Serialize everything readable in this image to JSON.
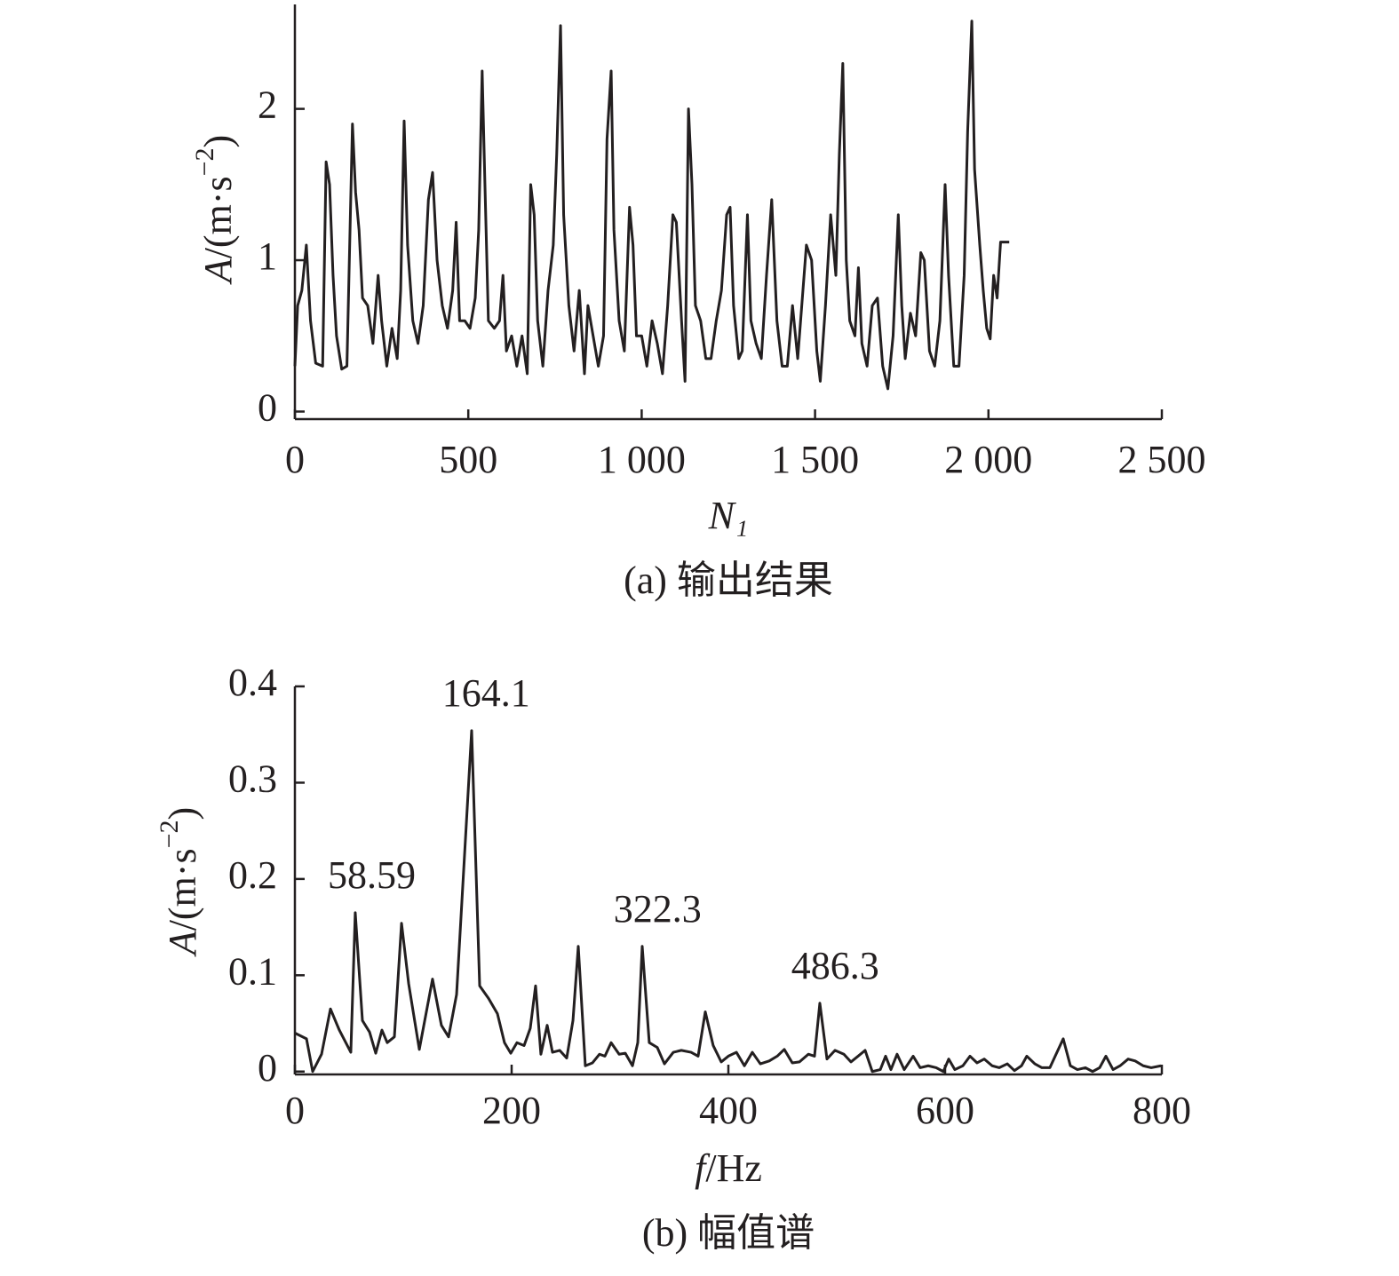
{
  "chart_data": [
    {
      "type": "line",
      "caption": "(a) 输出结果",
      "xlabel": [
        {
          "text": "N₁",
          "italic": true
        }
      ],
      "ylabel": [
        {
          "text": "A",
          "italic": true
        },
        {
          "text": "/(m·s"
        },
        {
          "text": "−2",
          "sup": true
        },
        {
          "text": ")"
        }
      ],
      "xlim": [
        0,
        2500
      ],
      "ylim": [
        -0.05,
        2.69
      ],
      "xticks": [
        0,
        500,
        {
          "value": 1000,
          "label": "1 000"
        },
        {
          "value": 1500,
          "label": "1 500"
        },
        {
          "value": 2000,
          "label": "2 000"
        },
        {
          "value": 2500,
          "label": "2 500"
        }
      ],
      "yticks": [
        0,
        1,
        2
      ],
      "x": [
        0,
        8,
        20,
        33,
        45,
        60,
        80,
        90,
        100,
        110,
        120,
        135,
        150,
        160,
        166,
        175,
        185,
        195,
        210,
        225,
        240,
        250,
        265,
        280,
        295,
        305,
        315,
        325,
        340,
        355,
        370,
        385,
        397,
        410,
        425,
        440,
        455,
        465,
        475,
        490,
        505,
        520,
        530,
        540,
        548,
        558,
        575,
        590,
        600,
        610,
        625,
        640,
        655,
        670,
        680,
        690,
        700,
        715,
        730,
        745,
        755,
        766,
        775,
        790,
        805,
        820,
        835,
        845,
        860,
        875,
        890,
        900,
        912,
        920,
        935,
        950,
        965,
        975,
        985,
        1000,
        1015,
        1030,
        1045,
        1060,
        1075,
        1090,
        1100,
        1115,
        1125,
        1135,
        1145,
        1155,
        1170,
        1185,
        1200,
        1215,
        1230,
        1245,
        1255,
        1265,
        1280,
        1290,
        1305,
        1315,
        1330,
        1345,
        1360,
        1375,
        1390,
        1405,
        1420,
        1435,
        1450,
        1465,
        1475,
        1490,
        1505,
        1515,
        1530,
        1545,
        1560,
        1570,
        1580,
        1590,
        1600,
        1615,
        1625,
        1635,
        1650,
        1665,
        1680,
        1695,
        1710,
        1725,
        1740,
        1750,
        1760,
        1775,
        1790,
        1805,
        1815,
        1830,
        1845,
        1860,
        1875,
        1885,
        1900,
        1915,
        1930,
        1940,
        1952,
        1960,
        1975,
        1985,
        1995,
        2005,
        2015,
        2025,
        2035,
        2060
      ],
      "series": [
        {
          "color": "#231f20",
          "values": [
            0.3,
            0.7,
            0.8,
            1.1,
            0.6,
            0.32,
            0.3,
            1.65,
            1.5,
            0.9,
            0.5,
            0.28,
            0.3,
            1.3,
            1.9,
            1.45,
            1.2,
            0.75,
            0.7,
            0.45,
            0.9,
            0.6,
            0.3,
            0.55,
            0.35,
            0.8,
            1.92,
            1.1,
            0.6,
            0.45,
            0.7,
            1.4,
            1.58,
            1.0,
            0.7,
            0.55,
            0.8,
            1.25,
            0.6,
            0.6,
            0.55,
            0.75,
            1.2,
            2.25,
            1.5,
            0.6,
            0.55,
            0.6,
            0.9,
            0.4,
            0.5,
            0.3,
            0.5,
            0.25,
            1.5,
            1.3,
            0.6,
            0.3,
            0.8,
            1.1,
            1.7,
            2.55,
            1.3,
            0.7,
            0.4,
            0.8,
            0.25,
            0.7,
            0.5,
            0.3,
            0.5,
            1.8,
            2.25,
            1.2,
            0.6,
            0.4,
            1.35,
            1.1,
            0.5,
            0.5,
            0.3,
            0.6,
            0.45,
            0.25,
            0.7,
            1.3,
            1.25,
            0.6,
            0.2,
            2.0,
            1.5,
            0.7,
            0.6,
            0.35,
            0.35,
            0.6,
            0.8,
            1.3,
            1.35,
            0.7,
            0.35,
            0.4,
            1.3,
            0.6,
            0.45,
            0.35,
            0.9,
            1.4,
            0.6,
            0.3,
            0.3,
            0.7,
            0.35,
            0.8,
            1.1,
            1.0,
            0.4,
            0.2,
            0.7,
            1.3,
            0.9,
            1.7,
            2.3,
            1.0,
            0.6,
            0.5,
            0.95,
            0.45,
            0.3,
            0.7,
            0.75,
            0.3,
            0.15,
            0.5,
            1.3,
            0.7,
            0.35,
            0.65,
            0.5,
            1.05,
            1.0,
            0.4,
            0.3,
            0.6,
            1.5,
            0.9,
            0.3,
            0.3,
            0.9,
            1.85,
            2.58,
            1.6,
            1.1,
            0.8,
            0.55,
            0.48,
            0.9,
            0.75,
            1.12,
            1.12
          ]
        }
      ]
    },
    {
      "type": "line",
      "caption": "(b) 幅值谱",
      "xlabel": [
        {
          "text": "f",
          "italic": true
        },
        {
          "text": "/Hz"
        }
      ],
      "ylabel": [
        {
          "text": "A",
          "italic": true
        },
        {
          "text": "/(m·s"
        },
        {
          "text": "−2",
          "sup": true
        },
        {
          "text": ")"
        }
      ],
      "xlim": [
        0,
        800
      ],
      "ylim": [
        -0.003,
        0.4
      ],
      "xticks": [
        0,
        200,
        400,
        600,
        800
      ],
      "yticks": [
        0,
        0.1,
        0.2,
        0.3,
        0.4
      ],
      "annotations": [
        {
          "value": 58.59,
          "label": "58.59"
        },
        {
          "value": 164.1,
          "label": "164.1"
        },
        {
          "value": 322.3,
          "label": "322.3"
        },
        {
          "value": 486.3,
          "label": "486.3"
        }
      ],
      "x": [
        0,
        10.7,
        16.4,
        24.6,
        32.8,
        41,
        51.6,
        55.7,
        62.3,
        68.9,
        74.6,
        80.3,
        85.2,
        91.8,
        98.4,
        105,
        114.8,
        127,
        135.2,
        141.8,
        149.2,
        163.1,
        170.5,
        178.7,
        186.9,
        193.4,
        199.2,
        204.9,
        211.5,
        217.2,
        222.1,
        227,
        232.8,
        237.7,
        244.3,
        250.8,
        256.6,
        261.5,
        268,
        274.6,
        281.1,
        286.1,
        291.8,
        299.2,
        304.9,
        311.5,
        316.4,
        320.5,
        327,
        334.4,
        341,
        349.2,
        356.6,
        365.6,
        372.1,
        378.7,
        386,
        393.4,
        400,
        407.4,
        414.8,
        422.1,
        429.5,
        437.7,
        445.1,
        451.6,
        459,
        465.6,
        473.8,
        479.5,
        484.4,
        491,
        498.4,
        506.6,
        513.1,
        519.7,
        526.2,
        532.8,
        540.2,
        545.1,
        550,
        555.7,
        562.3,
        570.5,
        577,
        584.4,
        591.8,
        598.4,
        603.3,
        609,
        616.4,
        623,
        629.5,
        636.1,
        643.4,
        650,
        657.4,
        664,
        670.5,
        675.4,
        682.8,
        689.3,
        696.7,
        701.6,
        709,
        715.6,
        722.1,
        729.5,
        736.1,
        742.6,
        748.4,
        755,
        761.5,
        768.9,
        775.4,
        782.8,
        790.2,
        799.2
      ],
      "series": [
        {
          "color": "#231f20",
          "values": [
            0.04,
            0.034,
            0,
            0.018,
            0.065,
            0.043,
            0.02,
            0.165,
            0.053,
            0.041,
            0.019,
            0.043,
            0.03,
            0.036,
            0.154,
            0.091,
            0.023,
            0.096,
            0.048,
            0.036,
            0.08,
            0.354,
            0.089,
            0.076,
            0.06,
            0.03,
            0.019,
            0.03,
            0.027,
            0.045,
            0.089,
            0.018,
            0.048,
            0.02,
            0.022,
            0.014,
            0.053,
            0.13,
            0.006,
            0.009,
            0.018,
            0.016,
            0.03,
            0.018,
            0.019,
            0.006,
            0.03,
            0.13,
            0.03,
            0.025,
            0.008,
            0.02,
            0.022,
            0.02,
            0.016,
            0.062,
            0.027,
            0.01,
            0.016,
            0.02,
            0.006,
            0.02,
            0.008,
            0.011,
            0.016,
            0.023,
            0.009,
            0.01,
            0.018,
            0.016,
            0.071,
            0.013,
            0.022,
            0.018,
            0.01,
            0.016,
            0.022,
            0,
            0.002,
            0.016,
            0.002,
            0.018,
            0.002,
            0.016,
            0.004,
            0.006,
            0.004,
            0,
            0.013,
            0.002,
            0.006,
            0.016,
            0.009,
            0.013,
            0.006,
            0.004,
            0.008,
            0.001,
            0.006,
            0.016,
            0.008,
            0.004,
            0.004,
            0.016,
            0.034,
            0.006,
            0.002,
            0.004,
            0,
            0.004,
            0.016,
            0.002,
            0.006,
            0.013,
            0.011,
            0.006,
            0.004,
            0.006
          ]
        }
      ]
    }
  ]
}
